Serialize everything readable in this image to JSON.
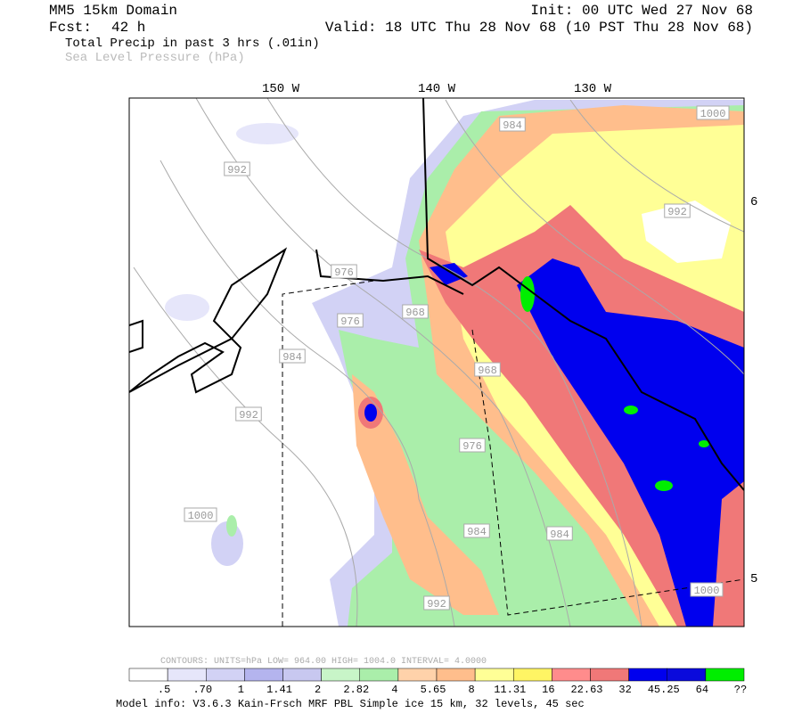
{
  "header": {
    "model": "MM5 15km Domain",
    "init": "Init: 00 UTC Wed 27 Nov 68",
    "fcst_label": "Fcst:",
    "fcst": "42 h",
    "valid": "Valid: 18 UTC Thu 28 Nov 68 (10 PST Thu 28 Nov 68)",
    "field1": "Total Precip in past 3 hrs (.01in)",
    "field2": "Sea Level Pressure (hPa)"
  },
  "map": {
    "lon_labels": [
      "150 W",
      "140 W",
      "130 W"
    ],
    "lat_labels": [
      "6",
      "5"
    ],
    "contour_labels": [
      "984",
      "992",
      "992",
      "976",
      "976",
      "968",
      "984",
      "968",
      "992",
      "976",
      "984",
      "984",
      "1000",
      "992",
      "1000",
      "1000"
    ]
  },
  "footer": {
    "contours": "CONTOURS:  UNITS=hPa  LOW=  964.00     HIGH=  1004.0     INTERVAL=   4.0000",
    "legend_colors": [
      "#ffffff",
      "#e6e6fa",
      "#d2d2f5",
      "#b4b4ee",
      "#c8c8f0",
      "#c8f5c8",
      "#aaeeaa",
      "#ffd2aa",
      "#ffbe8c",
      "#ffff96",
      "#fff564",
      "#ff8c8c",
      "#f07878",
      "#0000ee",
      "#0a0adc",
      "#00ee00"
    ],
    "legend_labels": [
      ".5",
      ".70",
      "1",
      "1.41",
      "2",
      "2.82",
      "4",
      "5.65",
      "8",
      "11.31",
      "16",
      "22.63",
      "32",
      "45.25",
      "64",
      "??"
    ],
    "model_info": "Model info: V3.6.3 Kain-Frsch MRF PBL    Simple ice   15 km,  32 levels,   45 sec"
  }
}
